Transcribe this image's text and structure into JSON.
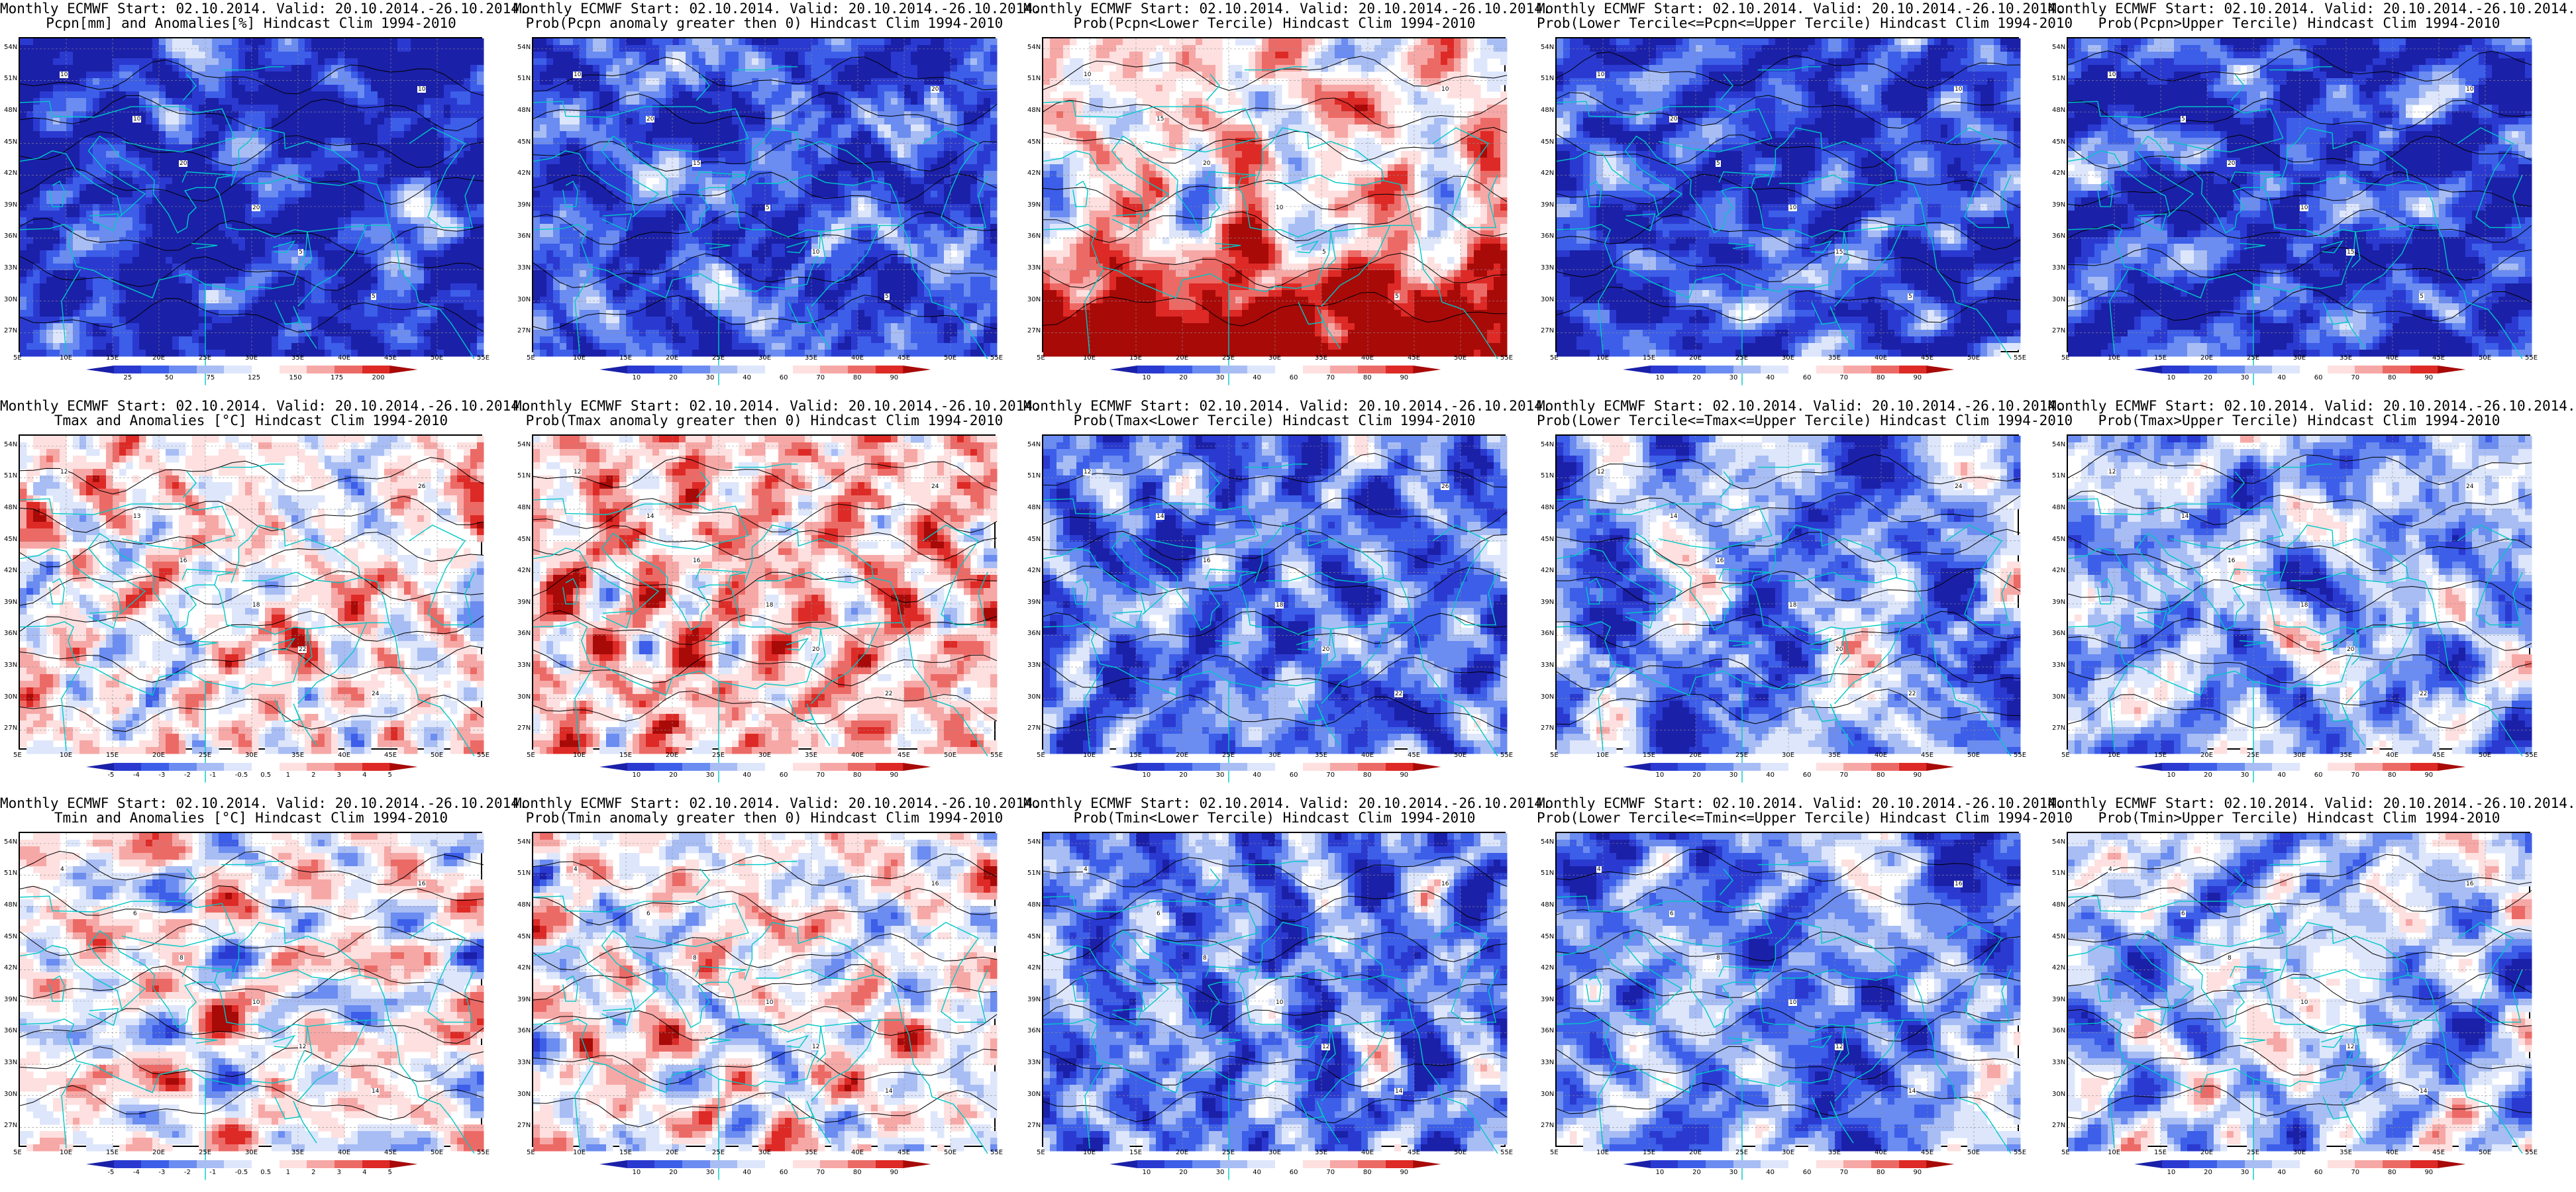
{
  "figure": {
    "map_extent": {
      "lon": [
        5,
        55
      ],
      "lat": [
        25,
        55
      ]
    },
    "lat_ticks": [
      "54N",
      "51N",
      "48N",
      "45N",
      "42N",
      "39N",
      "36N",
      "33N",
      "30N",
      "27N"
    ],
    "lon_ticks": [
      "5E",
      "10E",
      "15E",
      "20E",
      "25E",
      "30E",
      "35E",
      "40E",
      "45E",
      "50E",
      "55E"
    ],
    "colors": {
      "land_outline": "#00c8c8",
      "contour": "#000000",
      "grid": "#909090"
    }
  },
  "panels": [
    {
      "id": "pcpn-anom",
      "title1": "Monthly ECMWF Start: 02.10.2014. Valid: 20.10.2014.-26.10.2014.",
      "title2": "Pcpn[mm] and Anomalies[%] Hindcast Clim 1994-2010",
      "palette": "div11",
      "bias": -0.9,
      "contour_labels": [
        "10",
        "10",
        "20",
        "20",
        "5",
        "5",
        "10"
      ],
      "colorbar": {
        "labels": [
          "25",
          "50",
          "75",
          "125",
          "150",
          "175",
          "200"
        ]
      }
    },
    {
      "id": "pcpn-prob-pos",
      "title1": "Monthly ECMWF Start: 02.10.2014. Valid: 20.10.2014.-26.10.2014.",
      "title2": "Prob(Pcpn anomaly greater then 0) Hindcast Clim 1994-2010",
      "palette": "prob",
      "bias": -0.7,
      "contour_labels": [
        "10",
        "20",
        "15",
        "5",
        "10",
        "5",
        "20"
      ],
      "colorbar": {
        "labels": [
          "10",
          "20",
          "30",
          "40",
          "60",
          "70",
          "80",
          "90"
        ]
      }
    },
    {
      "id": "pcpn-prob-lower",
      "title1": "Monthly ECMWF Start: 02.10.2014. Valid: 20.10.2014.-26.10.2014.",
      "title2": "Prob(Pcpn<Lower Tercile) Hindcast Clim 1994-2010",
      "palette": "prob",
      "bias": 0.2,
      "south_bias": 0.9,
      "contour_labels": [
        "10",
        "15",
        "20",
        "10",
        "5",
        "5",
        "10"
      ],
      "colorbar": {
        "labels": [
          "10",
          "20",
          "30",
          "40",
          "60",
          "70",
          "80",
          "90"
        ]
      }
    },
    {
      "id": "pcpn-prob-middle",
      "title1": "Monthly ECMWF Start: 02.10.2014. Valid: 20.10.2014.-26.10.2014.",
      "title2": "Prob(Lower Tercile<=Pcpn<=Upper Tercile) Hindcast Clim 1994-2010",
      "palette": "prob",
      "bias": -0.75,
      "contour_labels": [
        "10",
        "20",
        "5",
        "10",
        "15",
        "5",
        "10"
      ],
      "colorbar": {
        "labels": [
          "10",
          "20",
          "30",
          "40",
          "60",
          "70",
          "80",
          "90"
        ]
      }
    },
    {
      "id": "pcpn-prob-upper",
      "title1": "Monthly ECMWF Start: 02.10.2014. Valid: 20.10.2014.-26.10.2014.",
      "title2": "Prob(Pcpn>Upper Tercile) Hindcast Clim 1994-2010",
      "palette": "prob",
      "bias": -0.8,
      "contour_labels": [
        "10",
        "5",
        "20",
        "10",
        "15",
        "5",
        "10"
      ],
      "colorbar": {
        "labels": [
          "10",
          "20",
          "30",
          "40",
          "60",
          "70",
          "80",
          "90"
        ]
      }
    },
    {
      "id": "tmax-anom",
      "title1": "Monthly ECMWF Start: 02.10.2014. Valid: 20.10.2014.-26.10.2014.",
      "title2": "Tmax and Anomalies [°C] Hindcast Clim 1994-2010",
      "palette": "div11",
      "bias": 0.15,
      "contour_labels": [
        "12",
        "13",
        "16",
        "18",
        "22",
        "24",
        "26"
      ],
      "colorbar": {
        "labels": [
          "-5",
          "-4",
          "-3",
          "-2",
          "-1",
          "-0.5",
          "0.5",
          "1",
          "2",
          "3",
          "4",
          "5"
        ]
      }
    },
    {
      "id": "tmax-prob-pos",
      "title1": "Monthly ECMWF Start: 02.10.2014. Valid: 20.10.2014.-26.10.2014.",
      "title2": "Prob(Tmax anomaly greater then 0) Hindcast Clim 1994-2010",
      "palette": "prob",
      "bias": 0.35,
      "contour_labels": [
        "12",
        "14",
        "16",
        "18",
        "20",
        "22",
        "24"
      ],
      "colorbar": {
        "labels": [
          "10",
          "20",
          "30",
          "40",
          "60",
          "70",
          "80",
          "90"
        ]
      }
    },
    {
      "id": "tmax-prob-lower",
      "title1": "Monthly ECMWF Start: 02.10.2014. Valid: 20.10.2014.-26.10.2014.",
      "title2": "Prob(Tmax<Lower Tercile) Hindcast Clim 1994-2010",
      "palette": "prob",
      "bias": -0.55,
      "contour_labels": [
        "12",
        "14",
        "16",
        "18",
        "20",
        "22",
        "26"
      ],
      "colorbar": {
        "labels": [
          "10",
          "20",
          "30",
          "40",
          "60",
          "70",
          "80",
          "90"
        ]
      }
    },
    {
      "id": "tmax-prob-middle",
      "title1": "Monthly ECMWF Start: 02.10.2014. Valid: 20.10.2014.-26.10.2014.",
      "title2": "Prob(Lower Tercile<=Tmax<=Upper Tercile) Hindcast Clim 1994-2010",
      "palette": "prob",
      "bias": -0.4,
      "contour_labels": [
        "12",
        "14",
        "16",
        "18",
        "20",
        "22",
        "24"
      ],
      "colorbar": {
        "labels": [
          "10",
          "20",
          "30",
          "40",
          "60",
          "70",
          "80",
          "90"
        ]
      }
    },
    {
      "id": "tmax-prob-upper",
      "title1": "Monthly ECMWF Start: 02.10.2014. Valid: 20.10.2014.-26.10.2014.",
      "title2": "Prob(Tmax>Upper Tercile) Hindcast Clim 1994-2010",
      "palette": "prob",
      "bias": -0.3,
      "contour_labels": [
        "12",
        "14",
        "16",
        "18",
        "20",
        "22",
        "24"
      ],
      "colorbar": {
        "labels": [
          "10",
          "20",
          "30",
          "40",
          "60",
          "70",
          "80",
          "90"
        ]
      }
    },
    {
      "id": "tmin-anom",
      "title1": "Monthly ECMWF Start: 02.10.2014. Valid: 20.10.2014.-26.10.2014.",
      "title2": "Tmin and Anomalies [°C] Hindcast Clim 1994-2010",
      "palette": "div11",
      "bias": 0.1,
      "contour_labels": [
        "4",
        "6",
        "8",
        "10",
        "12",
        "14",
        "16"
      ],
      "colorbar": {
        "labels": [
          "-5",
          "-4",
          "-3",
          "-2",
          "-1",
          "-0.5",
          "0.5",
          "1",
          "2",
          "3",
          "4",
          "5"
        ]
      }
    },
    {
      "id": "tmin-prob-pos",
      "title1": "Monthly ECMWF Start: 02.10.2014. Valid: 20.10.2014.-26.10.2014.",
      "title2": "Prob(Tmin anomaly greater then 0) Hindcast Clim 1994-2010",
      "palette": "prob",
      "bias": 0.1,
      "contour_labels": [
        "4",
        "6",
        "8",
        "10",
        "12",
        "14",
        "16"
      ],
      "colorbar": {
        "labels": [
          "10",
          "20",
          "30",
          "40",
          "60",
          "70",
          "80",
          "90"
        ]
      }
    },
    {
      "id": "tmin-prob-lower",
      "title1": "Monthly ECMWF Start: 02.10.2014. Valid: 20.10.2014.-26.10.2014.",
      "title2": "Prob(Tmin<Lower Tercile) Hindcast Clim 1994-2010",
      "palette": "prob",
      "bias": -0.5,
      "contour_labels": [
        "4",
        "6",
        "8",
        "10",
        "12",
        "14",
        "16"
      ],
      "colorbar": {
        "labels": [
          "10",
          "20",
          "30",
          "40",
          "60",
          "70",
          "80",
          "90"
        ]
      }
    },
    {
      "id": "tmin-prob-middle",
      "title1": "Monthly ECMWF Start: 02.10.2014. Valid: 20.10.2014.-26.10.2014.",
      "title2": "Prob(Lower Tercile<=Tmin<=Upper Tercile) Hindcast Clim 1994-2010",
      "palette": "prob",
      "bias": -0.45,
      "contour_labels": [
        "4",
        "6",
        "8",
        "10",
        "12",
        "14",
        "16"
      ],
      "colorbar": {
        "labels": [
          "10",
          "20",
          "30",
          "40",
          "60",
          "70",
          "80",
          "90"
        ]
      }
    },
    {
      "id": "tmin-prob-upper",
      "title1": "Monthly ECMWF Start: 02.10.2014. Valid: 20.10.2014.-26.10.2014.",
      "title2": "Prob(Tmin>Upper Tercile) Hindcast Clim 1994-2010",
      "palette": "prob",
      "bias": -0.2,
      "contour_labels": [
        "4",
        "6",
        "8",
        "10",
        "12",
        "14",
        "16"
      ],
      "colorbar": {
        "labels": [
          "10",
          "20",
          "30",
          "40",
          "60",
          "70",
          "80",
          "90"
        ]
      }
    }
  ]
}
